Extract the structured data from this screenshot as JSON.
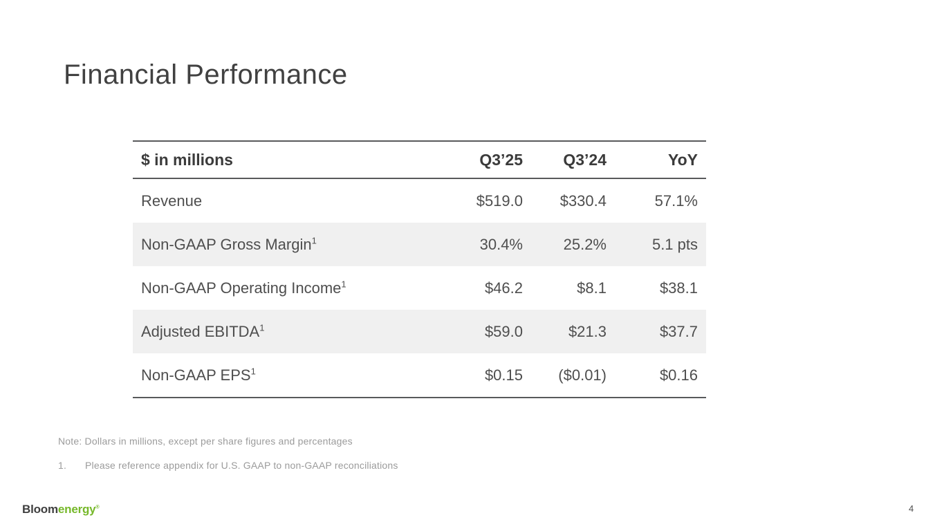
{
  "slide": {
    "title": "Financial Performance",
    "page_number": "4"
  },
  "table": {
    "header": {
      "label": "$ in millions",
      "col1": "Q3’25",
      "col2": "Q3’24",
      "col3": "YoY"
    },
    "rows": [
      {
        "label": "Revenue",
        "sup": "",
        "q3_25": "$519.0",
        "q3_24": "$330.4",
        "yoy": "57.1%"
      },
      {
        "label": "Non-GAAP Gross Margin",
        "sup": "1",
        "q3_25": "30.4%",
        "q3_24": "25.2%",
        "yoy": "5.1 pts"
      },
      {
        "label": "Non-GAAP Operating Income",
        "sup": "1",
        "q3_25": "$46.2",
        "q3_24": "$8.1",
        "yoy": "$38.1"
      },
      {
        "label": "Adjusted EBITDA",
        "sup": "1",
        "q3_25": "$59.0",
        "q3_24": "$21.3",
        "yoy": "$37.7"
      },
      {
        "label": "Non-GAAP EPS",
        "sup": "1",
        "q3_25": "$0.15",
        "q3_24": "($0.01)",
        "yoy": "$0.16"
      }
    ]
  },
  "footnotes": {
    "note": "Note: Dollars in millions, except per share figures and percentages",
    "item1_number": "1.",
    "item1_text": "Please reference appendix for U.S. GAAP to non-GAAP reconciliations"
  },
  "logo": {
    "part1": "Bloom",
    "part2": "energy",
    "mark": "®"
  },
  "colors": {
    "accent_green": "#76b82a",
    "row_stripe": "#f0f0f0",
    "table_rule": "#58595b",
    "title_text": "#414141",
    "body_text": "#4e4e4e",
    "muted_text": "#9b9b9b"
  }
}
